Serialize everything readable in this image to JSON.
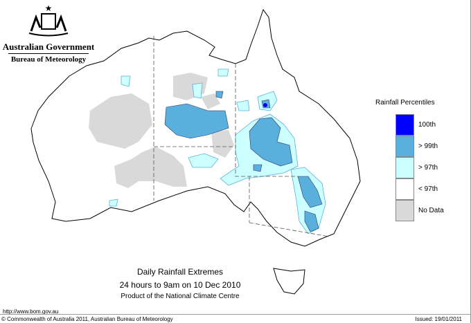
{
  "branding": {
    "government": "Australian Government",
    "bureau": "Bureau of Meteorology"
  },
  "title": "Daily Rainfall Extremes",
  "period": "24 hours to 9am on 10 Dec 2010",
  "product": "Product of the National Climate Centre",
  "url": "http://www.bom.gov.au",
  "copyright": "© Commonwealth of Australia 2011, Australian Bureau of Meteorology",
  "issued": "Issued: 19/01/2011",
  "legend": {
    "title": "Rainfall Percentiles",
    "items": [
      {
        "label": "100th",
        "color": "#0000ff"
      },
      {
        "label": "> 99th",
        "color": "#5ab0dc"
      },
      {
        "label": "> 97th",
        "color": "#ccffff"
      },
      {
        "label": "< 97th",
        "color": "#ffffff"
      },
      {
        "label": "No Data",
        "color": "#d9d9d9"
      }
    ]
  }
}
